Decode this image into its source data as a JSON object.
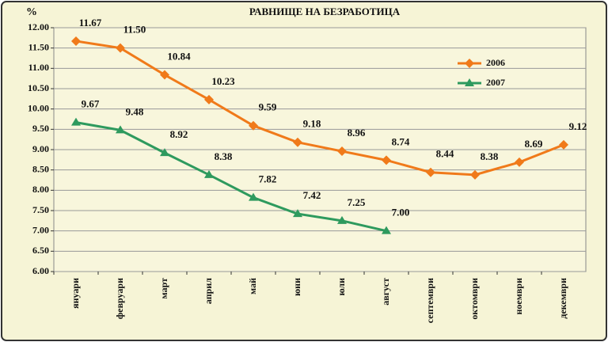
{
  "chart_data": {
    "type": "line",
    "title": "РАВНИЩЕ НА БЕЗРАБОТИЦА",
    "y_label": "%",
    "categories": [
      "януари",
      "февруари",
      "март",
      "април",
      "май",
      "юни",
      "юли",
      "август",
      "септември",
      "октомври",
      "ноември",
      "декември"
    ],
    "series": [
      {
        "name": "2006",
        "color": "#f07a1a",
        "marker": "diamond",
        "values": [
          11.67,
          11.5,
          10.84,
          10.23,
          9.59,
          9.18,
          8.96,
          8.74,
          8.44,
          8.38,
          8.69,
          9.12
        ],
        "value_labels": [
          "11.67",
          "11.50",
          "10.84",
          "10.23",
          "9.59",
          "9.18",
          "8.96",
          "8.74",
          "8.44",
          "8.38",
          "8.69",
          "9.12"
        ]
      },
      {
        "name": "2007",
        "color": "#2e9a5e",
        "marker": "triangle",
        "values": [
          9.67,
          9.48,
          8.92,
          8.38,
          7.82,
          7.42,
          7.25,
          7.0,
          null,
          null,
          null,
          null
        ],
        "value_labels": [
          "9.67",
          "9.48",
          "8.92",
          "8.38",
          "7.82",
          "7.42",
          "7.25",
          "7.00",
          null,
          null,
          null,
          null
        ]
      }
    ],
    "ylim": [
      6,
      12
    ],
    "yticks": [
      {
        "value": 6,
        "label": "6.00"
      },
      {
        "value": 6.5,
        "label": "6.50"
      },
      {
        "value": 7,
        "label": "7.00"
      },
      {
        "value": 7.5,
        "label": "7.50"
      },
      {
        "value": 8,
        "label": "8.00"
      },
      {
        "value": 8.5,
        "label": "8.50"
      },
      {
        "value": 9,
        "label": "9.00"
      },
      {
        "value": 9.5,
        "label": "9.50"
      },
      {
        "value": 10,
        "label": "10.00"
      },
      {
        "value": 10.5,
        "label": "10.50"
      },
      {
        "value": 11,
        "label": "11.00"
      },
      {
        "value": 11.5,
        "label": "11.50"
      },
      {
        "value": 12,
        "label": "12.00"
      }
    ],
    "grid": true
  }
}
